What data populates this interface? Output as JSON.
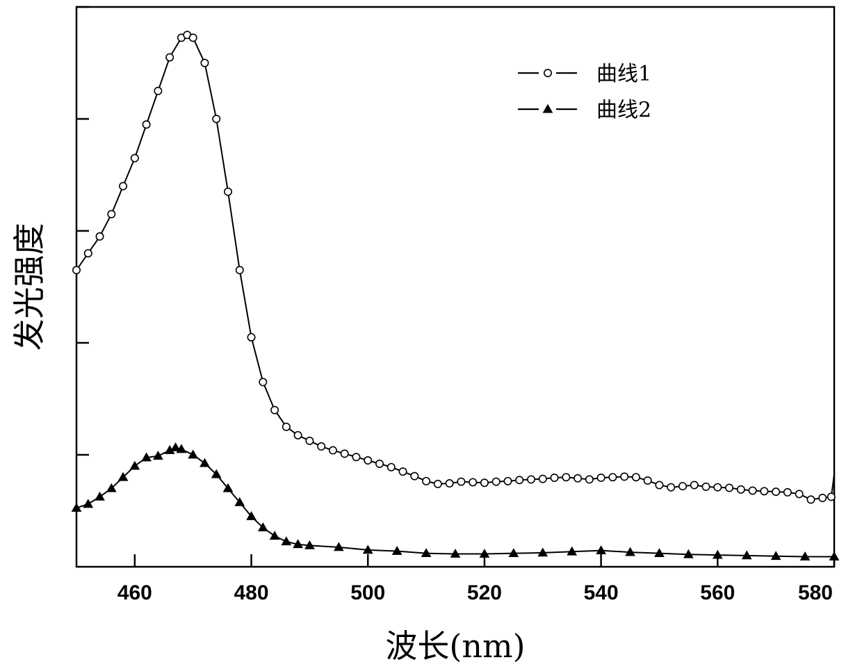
{
  "chart_data": {
    "type": "line",
    "title": "",
    "xlabel": "波长(nm)",
    "ylabel": "发光强度",
    "xlim": [
      450,
      580
    ],
    "ylim": [
      0,
      100
    ],
    "xticks": [
      460,
      480,
      500,
      520,
      540,
      560,
      580
    ],
    "xtick_labels": [
      "460",
      "480",
      "500",
      "520",
      "540",
      "560",
      "580"
    ],
    "yticks": [
      20,
      40,
      60,
      80,
      100
    ],
    "ytick_labels_shown": false,
    "grid": false,
    "legend_position": "top-right",
    "series": [
      {
        "name": "曲线1",
        "marker": "open-circle",
        "color": "#000000",
        "x": [
          450,
          452,
          454,
          456,
          458,
          460,
          462,
          464,
          466,
          468,
          469,
          470,
          472,
          474,
          476,
          478,
          480,
          482,
          484,
          486,
          488,
          490,
          492,
          494,
          496,
          498,
          500,
          502,
          504,
          506,
          508,
          510,
          512,
          514,
          516,
          518,
          520,
          522,
          524,
          526,
          528,
          530,
          532,
          534,
          536,
          538,
          540,
          542,
          544,
          546,
          548,
          550,
          552,
          554,
          556,
          558,
          560,
          562,
          564,
          566,
          568,
          570,
          572,
          574,
          576,
          578,
          579.5,
          580
        ],
        "y": [
          53,
          56,
          59,
          63,
          68,
          73,
          79,
          85,
          91,
          94.5,
          95,
          94.5,
          90,
          80,
          67,
          53,
          41,
          33,
          28,
          25,
          23.5,
          22.5,
          21.5,
          20.8,
          20.2,
          19.6,
          19.0,
          18.4,
          17.8,
          17.0,
          16.2,
          15.3,
          14.8,
          14.9,
          15.2,
          15.1,
          15.0,
          15.2,
          15.3,
          15.5,
          15.6,
          15.7,
          15.9,
          16.0,
          15.8,
          15.6,
          15.9,
          16.0,
          16.1,
          16.0,
          15.4,
          14.6,
          14.2,
          14.4,
          14.6,
          14.3,
          14.2,
          14.1,
          13.8,
          13.6,
          13.5,
          13.4,
          13.3,
          13.0,
          12.0,
          12.3,
          12.5,
          16.5
        ]
      },
      {
        "name": "曲线2",
        "marker": "filled-triangle",
        "color": "#000000",
        "x": [
          450,
          452,
          454,
          456,
          458,
          460,
          462,
          464,
          466,
          467,
          468,
          470,
          472,
          474,
          476,
          478,
          480,
          482,
          484,
          486,
          488,
          490,
          495,
          500,
          505,
          510,
          515,
          520,
          525,
          530,
          535,
          540,
          545,
          550,
          555,
          560,
          565,
          570,
          575,
          580
        ],
        "y": [
          10.5,
          11.2,
          12.5,
          14.0,
          16.0,
          18.0,
          19.5,
          19.8,
          20.8,
          21.3,
          21.0,
          20.0,
          18.5,
          16.5,
          14.0,
          11.5,
          9.0,
          7.0,
          5.5,
          4.5,
          4.0,
          3.8,
          3.5,
          3.0,
          2.8,
          2.4,
          2.3,
          2.3,
          2.4,
          2.5,
          2.7,
          2.9,
          2.6,
          2.4,
          2.2,
          2.1,
          2.0,
          1.9,
          1.8,
          1.8
        ]
      }
    ]
  }
}
